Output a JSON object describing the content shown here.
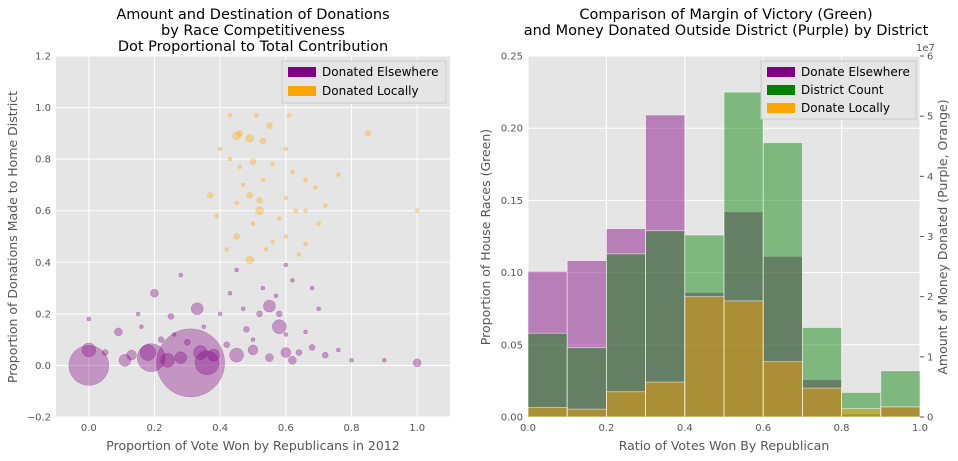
{
  "chart_data": [
    {
      "type": "scatter",
      "title_lines": [
        "Amount and Destination of Donations",
        "by Race Competitiveness",
        "Dot Proportional to Total Contribution"
      ],
      "xlabel": "Proportion of Vote Won by Republicans in 2012",
      "ylabel": "Proportion of Donations Made to Home District",
      "xlim": [
        -0.1,
        1.1
      ],
      "ylim": [
        -0.2,
        1.2
      ],
      "xticks": [
        "0.0",
        "0.2",
        "0.4",
        "0.6",
        "0.8",
        "1.0"
      ],
      "yticks": [
        "−0.2",
        "0.0",
        "0.2",
        "0.4",
        "0.6",
        "0.8",
        "1.0",
        "1.2"
      ],
      "grid": true,
      "legend_position": "top-right",
      "series": [
        {
          "name": "Donated Elsewhere",
          "color": "#800080",
          "points": [
            [
              0.0,
              0.0,
              20
            ],
            [
              0.31,
              0.01,
              34
            ],
            [
              0.19,
              0.03,
              14
            ],
            [
              0.36,
              0.01,
              12
            ],
            [
              0.18,
              0.05,
              8
            ],
            [
              0.24,
              0.02,
              7
            ],
            [
              0.28,
              0.03,
              6
            ],
            [
              0.34,
              0.05,
              7
            ],
            [
              0.38,
              0.04,
              6
            ],
            [
              0.45,
              0.04,
              7
            ],
            [
              0.55,
              0.23,
              6
            ],
            [
              0.58,
              0.15,
              7
            ],
            [
              0.6,
              0.05,
              5
            ],
            [
              0.0,
              0.06,
              7
            ],
            [
              0.11,
              0.02,
              6
            ],
            [
              0.13,
              0.04,
              5
            ],
            [
              0.09,
              0.13,
              4
            ],
            [
              0.5,
              0.06,
              5
            ],
            [
              0.55,
              0.03,
              4
            ],
            [
              0.62,
              0.02,
              4
            ],
            [
              0.64,
              0.05,
              3
            ],
            [
              0.68,
              0.07,
              3
            ],
            [
              0.72,
              0.04,
              3
            ],
            [
              1.0,
              0.01,
              4
            ],
            [
              0.2,
              0.28,
              4
            ],
            [
              0.25,
              0.19,
              3
            ],
            [
              0.33,
              0.22,
              6
            ],
            [
              0.48,
              0.14,
              3
            ],
            [
              0.52,
              0.2,
              3
            ],
            [
              0.58,
              0.2,
              3
            ],
            [
              0.42,
              0.08,
              3
            ],
            [
              0.3,
              0.09,
              3
            ],
            [
              0.22,
              0.1,
              3
            ],
            [
              0.15,
              0.2,
              2
            ],
            [
              0.05,
              0.05,
              3
            ],
            [
              0.26,
              0.12,
              2
            ],
            [
              0.4,
              0.2,
              2
            ],
            [
              0.47,
              0.22,
              2
            ],
            [
              0.6,
              0.12,
              2
            ],
            [
              0.66,
              0.13,
              2
            ],
            [
              0.7,
              0.22,
              2
            ],
            [
              0.76,
              0.06,
              2
            ],
            [
              0.8,
              0.02,
              2
            ],
            [
              0.9,
              0.02,
              2
            ],
            [
              0.35,
              0.15,
              2
            ],
            [
              0.53,
              0.3,
              2
            ],
            [
              0.57,
              0.27,
              2
            ],
            [
              0.62,
              0.33,
              2
            ],
            [
              0.28,
              0.35,
              2
            ],
            [
              0.45,
              0.37,
              2
            ],
            [
              0.6,
              0.39,
              2
            ],
            [
              0.68,
              0.3,
              2
            ],
            [
              0.16,
              0.15,
              2
            ],
            [
              0.0,
              0.18,
              2
            ],
            [
              0.43,
              0.28,
              2
            ],
            [
              0.5,
              0.1,
              2
            ]
          ]
        },
        {
          "name": "Donated Locally",
          "color": "#ffa500",
          "points": [
            [
              0.45,
              0.89,
              4
            ],
            [
              0.46,
              0.9,
              3
            ],
            [
              0.49,
              0.88,
              4
            ],
            [
              0.53,
              0.87,
              3
            ],
            [
              0.46,
              0.77,
              2
            ],
            [
              0.5,
              0.79,
              3
            ],
            [
              0.56,
              0.78,
              2
            ],
            [
              0.52,
              0.64,
              3
            ],
            [
              0.52,
              0.6,
              4
            ],
            [
              0.49,
              0.66,
              3
            ],
            [
              0.37,
              0.66,
              3
            ],
            [
              0.45,
              0.5,
              3
            ],
            [
              0.49,
              0.41,
              4
            ],
            [
              0.85,
              0.9,
              3
            ],
            [
              0.43,
              0.97,
              2
            ],
            [
              0.51,
              0.97,
              2
            ],
            [
              0.61,
              0.97,
              2
            ],
            [
              0.55,
              0.93,
              3
            ],
            [
              0.4,
              0.84,
              2
            ],
            [
              0.6,
              0.84,
              2
            ],
            [
              0.43,
              0.8,
              2
            ],
            [
              0.62,
              0.75,
              2
            ],
            [
              0.66,
              0.72,
              2
            ],
            [
              0.69,
              0.69,
              2
            ],
            [
              0.6,
              0.65,
              2
            ],
            [
              0.58,
              0.57,
              2
            ],
            [
              0.63,
              0.6,
              2
            ],
            [
              0.72,
              0.62,
              2
            ],
            [
              0.56,
              0.48,
              2
            ],
            [
              0.6,
              0.5,
              2
            ],
            [
              0.64,
              0.43,
              2
            ],
            [
              0.66,
              0.47,
              2
            ],
            [
              0.42,
              0.45,
              2
            ],
            [
              0.54,
              0.45,
              2
            ],
            [
              0.47,
              0.7,
              2
            ],
            [
              0.53,
              0.72,
              2
            ],
            [
              0.39,
              0.58,
              2
            ],
            [
              0.45,
              0.63,
              2
            ],
            [
              1.0,
              0.6,
              2
            ],
            [
              0.76,
              0.74,
              2
            ],
            [
              0.7,
              0.55,
              2
            ],
            [
              0.66,
              0.6,
              2
            ],
            [
              0.5,
              0.55,
              2
            ]
          ]
        }
      ]
    },
    {
      "type": "bar",
      "title_lines": [
        "Comparison of Margin of Victory (Green)",
        "and Money Donated Outside District (Purple) by District"
      ],
      "xlabel": "Ratio of Votes Won By Republican",
      "ylabel_left": "Proportion of House Races (Green)",
      "ylabel_right": "Amount of Money Donated (Purple, Orange)",
      "right_axis_multiplier": "1e7",
      "xlim": [
        0.0,
        1.0
      ],
      "ylim_left": [
        0.0,
        0.25
      ],
      "ylim_right": [
        0.0,
        6.0
      ],
      "bin_edges": [
        0.0,
        0.1,
        0.2,
        0.3,
        0.4,
        0.5,
        0.6,
        0.7,
        0.8,
        0.9,
        1.0
      ],
      "xticks": [
        "0.0",
        "0.2",
        "0.4",
        "0.6",
        "0.8",
        "1.0"
      ],
      "yticks_left": [
        "0.00",
        "0.05",
        "0.10",
        "0.15",
        "0.20",
        "0.25"
      ],
      "yticks_right": [
        "0",
        "1",
        "2",
        "3",
        "4",
        "5",
        "6"
      ],
      "grid": true,
      "legend_position": "top-right",
      "series": [
        {
          "name": "Donate Elsewhere",
          "color": "#800080",
          "axis": "right",
          "values": [
            2.42,
            2.6,
            3.13,
            5.02,
            2.07,
            3.41,
            2.67,
            0.62,
            0.05,
            0.16
          ]
        },
        {
          "name": "District Count",
          "color": "#008000",
          "axis": "left",
          "values": [
            0.058,
            0.048,
            0.113,
            0.129,
            0.126,
            0.225,
            0.19,
            0.062,
            0.017,
            0.032
          ]
        },
        {
          "name": "Donate Locally",
          "color": "#ffa500",
          "axis": "right",
          "values": [
            0.16,
            0.13,
            0.42,
            0.58,
            2.0,
            1.93,
            0.92,
            0.48,
            0.14,
            0.17
          ]
        }
      ]
    }
  ]
}
